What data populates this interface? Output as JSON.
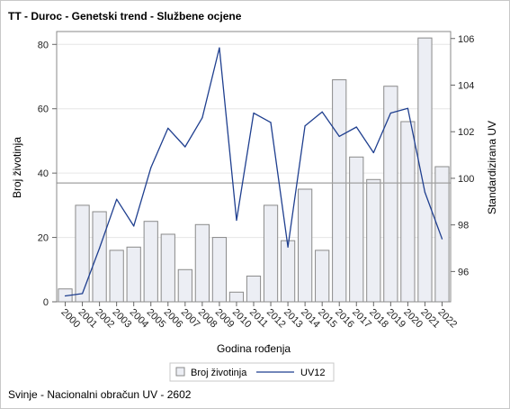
{
  "chart_data": {
    "type": "bar",
    "title": "TT - Duroc - Genetski trend - Službene ocjene",
    "xlabel": "Godina rođenja",
    "ylabel": "Broj životinja",
    "y2label": "Standardizirana UV",
    "footnote": "Svinje - Nacionalni obračun UV - 2602",
    "categories": [
      "2000",
      "2001",
      "2002",
      "2003",
      "2004",
      "2005",
      "2006",
      "2007",
      "2008",
      "2009",
      "2010",
      "2011",
      "2012",
      "2013",
      "2014",
      "2015",
      "2016",
      "2017",
      "2018",
      "2019",
      "2020",
      "2021",
      "2022"
    ],
    "ylim": [
      0,
      84
    ],
    "y_ticks": [
      0,
      20,
      40,
      60,
      80
    ],
    "y2lim": [
      94.7,
      106.3
    ],
    "y2_ticks": [
      96,
      98,
      100,
      102,
      104,
      106
    ],
    "reference_line_y2": 99.8,
    "series": [
      {
        "name": "Broj životinja",
        "type": "bar",
        "axis": "left",
        "color": "#eceef4",
        "stroke": "#8a8a8a",
        "values": [
          4,
          30,
          28,
          16,
          17,
          25,
          21,
          10,
          24,
          20,
          3,
          8,
          30,
          19,
          35,
          16,
          69,
          45,
          38,
          67,
          56,
          82,
          42
        ]
      },
      {
        "name": "UV12",
        "type": "line",
        "axis": "right",
        "color": "#1f3f8f",
        "values": [
          94.95,
          95.05,
          97.0,
          99.1,
          97.95,
          100.45,
          102.15,
          101.35,
          102.6,
          105.6,
          98.2,
          102.8,
          102.4,
          97.05,
          102.25,
          102.85,
          101.8,
          102.2,
          101.1,
          102.8,
          103.0,
          99.4,
          97.4
        ]
      }
    ],
    "grid": true,
    "legend_position": "bottom-center"
  }
}
